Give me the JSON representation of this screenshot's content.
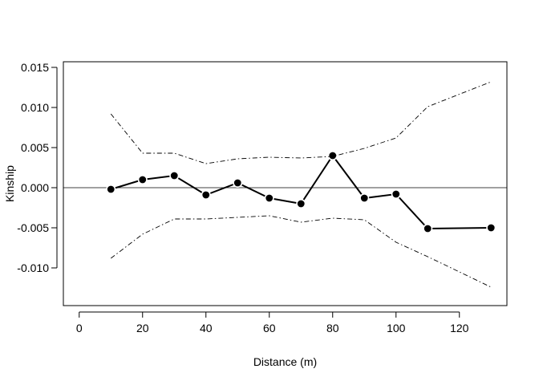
{
  "chart_data": {
    "type": "line",
    "title": "",
    "xlabel": "Distance (m)",
    "ylabel": "Kinship",
    "xlim": [
      -5,
      135
    ],
    "ylim": [
      -0.0147,
      0.0157
    ],
    "x_ticks": [
      0,
      20,
      40,
      60,
      80,
      100,
      120
    ],
    "x_tick_labels": [
      "0",
      "20",
      "40",
      "60",
      "80",
      "100",
      "120"
    ],
    "y_ticks": [
      -0.01,
      -0.005,
      0.0,
      0.005,
      0.01,
      0.015
    ],
    "y_tick_labels": [
      "-0.010",
      "-0.005",
      "0.000",
      "0.005",
      "0.010",
      "0.015"
    ],
    "grid": false,
    "reference_line_y": 0,
    "series": [
      {
        "style": "solid-with-points",
        "x": [
          10,
          20,
          30,
          40,
          50,
          60,
          70,
          80,
          90,
          100,
          110,
          130
        ],
        "y": [
          -0.0002,
          0.001,
          0.0015,
          -0.0009,
          0.0006,
          -0.0013,
          -0.002,
          0.004,
          -0.0013,
          -0.0008,
          -0.0051,
          -0.005
        ]
      },
      {
        "style": "dash-dot",
        "x": [
          10,
          20,
          30,
          40,
          50,
          60,
          70,
          80,
          90,
          100,
          110,
          130
        ],
        "y": [
          0.0092,
          0.0043,
          0.0043,
          0.003,
          0.0036,
          0.0038,
          0.0037,
          0.0039,
          0.0049,
          0.0062,
          0.0101,
          0.0132
        ]
      },
      {
        "style": "dash-dot",
        "x": [
          10,
          20,
          30,
          40,
          50,
          60,
          70,
          80,
          90,
          100,
          110,
          130
        ],
        "y": [
          -0.0088,
          -0.0058,
          -0.0039,
          -0.0039,
          -0.0037,
          -0.0035,
          -0.0043,
          -0.0038,
          -0.004,
          -0.0068,
          -0.0086,
          -0.0124
        ]
      }
    ]
  }
}
